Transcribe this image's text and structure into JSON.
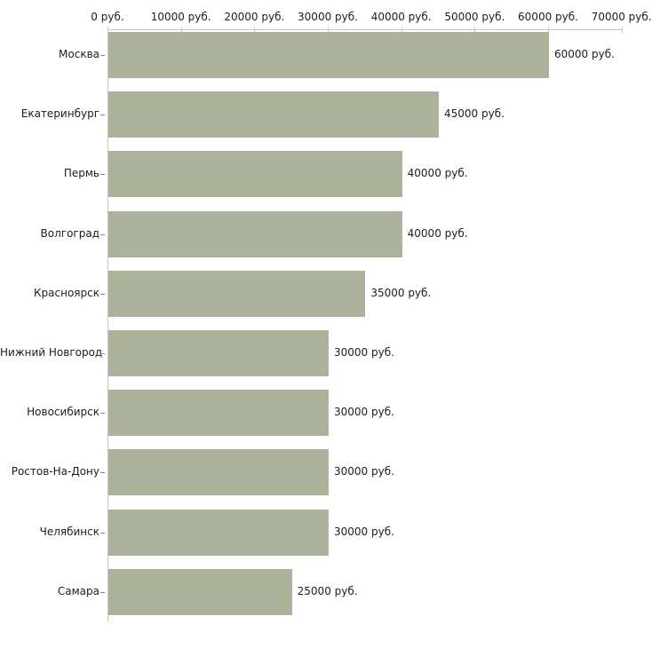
{
  "chart_data": {
    "type": "bar",
    "orientation": "horizontal",
    "title": "",
    "categories": [
      "Москва",
      "Екатеринбург",
      "Пермь",
      "Волгоград",
      "Красноярск",
      "Нижний Новгород",
      "Новосибирск",
      "Ростов-На-Дону",
      "Челябинск",
      "Самара"
    ],
    "values": [
      60000,
      45000,
      40000,
      40000,
      35000,
      30000,
      30000,
      30000,
      30000,
      25000
    ],
    "value_labels": [
      "60000 руб.",
      "45000 руб.",
      "40000 руб.",
      "40000 руб.",
      "35000 руб.",
      "30000 руб.",
      "30000 руб.",
      "30000 руб.",
      "30000 руб.",
      "25000 руб."
    ],
    "unit": "руб.",
    "xlim": [
      0,
      70000
    ],
    "x_tick_values": [
      0,
      10000,
      20000,
      30000,
      40000,
      50000,
      60000,
      70000
    ],
    "x_tick_labels": [
      "0 руб.",
      "10000 руб.",
      "20000 руб.",
      "30000 руб.",
      "40000 руб.",
      "50000 руб.",
      "60000 руб.",
      "70000 руб."
    ],
    "legend": "none",
    "grid": "off",
    "colors": {
      "bar": "#adb39a",
      "axis_line": "#c6c6c6",
      "x_tick": "#c9cdaa",
      "category_tick": "#8a8a7e",
      "text": "#1d1d1d",
      "background": "#ffffff"
    }
  }
}
